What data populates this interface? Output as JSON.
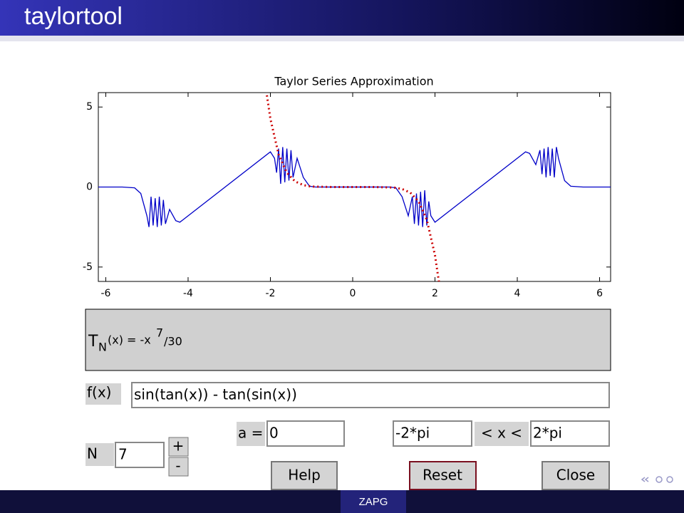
{
  "slide": {
    "title": "taylortool",
    "footer": "ZAPG"
  },
  "chart_data": {
    "type": "line",
    "title": "Taylor Series Approximation",
    "xlim": [
      -6.28,
      6.28
    ],
    "ylim": [
      -5.9,
      5.9
    ],
    "xticks": [
      -6,
      -4,
      -2,
      0,
      2,
      4,
      6
    ],
    "yticks": [
      5,
      0,
      -5
    ],
    "grid": false,
    "series": [
      {
        "color": "#0000c8",
        "style": "solid",
        "x": [
          -6.28,
          -5.6,
          -5.3,
          -5.15,
          -5.0,
          -4.95,
          -4.9,
          -4.85,
          -4.8,
          -4.75,
          -4.7,
          -4.65,
          -4.6,
          -4.55,
          -4.45,
          -4.3,
          -4.2,
          -2.0,
          -1.9,
          -1.85,
          -1.8,
          -1.75,
          -1.7,
          -1.65,
          -1.6,
          -1.55,
          -1.5,
          -1.45,
          -1.35,
          -1.2,
          -1.05,
          -0.9,
          0.9,
          1.05,
          1.2,
          1.35,
          1.45,
          1.5,
          1.55,
          1.6,
          1.65,
          1.7,
          1.75,
          1.8,
          1.85,
          1.9,
          2.0,
          4.2,
          4.3,
          4.45,
          4.55,
          4.6,
          4.65,
          4.7,
          4.75,
          4.8,
          4.85,
          4.9,
          4.95,
          5.0,
          5.15,
          5.3,
          5.6,
          6.28
        ],
        "values": [
          0,
          0,
          -0.05,
          -0.4,
          -1.8,
          -2.5,
          -0.6,
          -2.4,
          -0.7,
          -2.5,
          -0.6,
          -2.4,
          -0.8,
          -2.3,
          -1.4,
          -2.1,
          -2.2,
          2.2,
          1.8,
          0.9,
          2.4,
          0.2,
          2.5,
          0.3,
          2.4,
          0.4,
          2.3,
          0.6,
          1.8,
          0.6,
          0.05,
          0,
          0,
          -0.05,
          -0.6,
          -1.8,
          -0.6,
          -2.3,
          -0.4,
          -2.4,
          -0.3,
          -2.5,
          -0.2,
          -2.4,
          -0.9,
          -1.8,
          -2.2,
          2.2,
          2.1,
          1.4,
          2.3,
          0.8,
          2.4,
          0.6,
          2.5,
          0.7,
          2.4,
          0.6,
          2.5,
          1.8,
          0.4,
          0.05,
          0,
          0
        ]
      },
      {
        "color": "#cc0000",
        "style": "dotted",
        "x": [
          -2.1,
          -2.0,
          -1.8,
          -1.6,
          -1.4,
          -1.2,
          -1.0,
          -0.5,
          0,
          0.5,
          1.0,
          1.2,
          1.4,
          1.6,
          1.8,
          2.0,
          2.1
        ],
        "values": [
          6.0,
          4.267,
          2.041,
          0.895,
          0.351,
          0.119,
          0.033,
          0,
          0,
          0,
          -0.033,
          -0.119,
          -0.351,
          -0.895,
          -2.041,
          -4.267,
          -6.0
        ]
      }
    ]
  },
  "formula": {
    "lhs": "T",
    "sub": "N",
    "mid": "(x) = -x",
    "sup": "7",
    "rest": "/30"
  },
  "controls": {
    "f_label": "f(x)",
    "f_value": "sin(tan(x)) - tan(sin(x))",
    "n_label": "N",
    "n_value": "7",
    "plus": "+",
    "minus": "-",
    "a_label": "a =",
    "a_value": "0",
    "lower_value": "-2*pi",
    "range_label": "< x <",
    "upper_value": "2*pi",
    "help": "Help",
    "reset": "Reset",
    "close": "Close"
  }
}
